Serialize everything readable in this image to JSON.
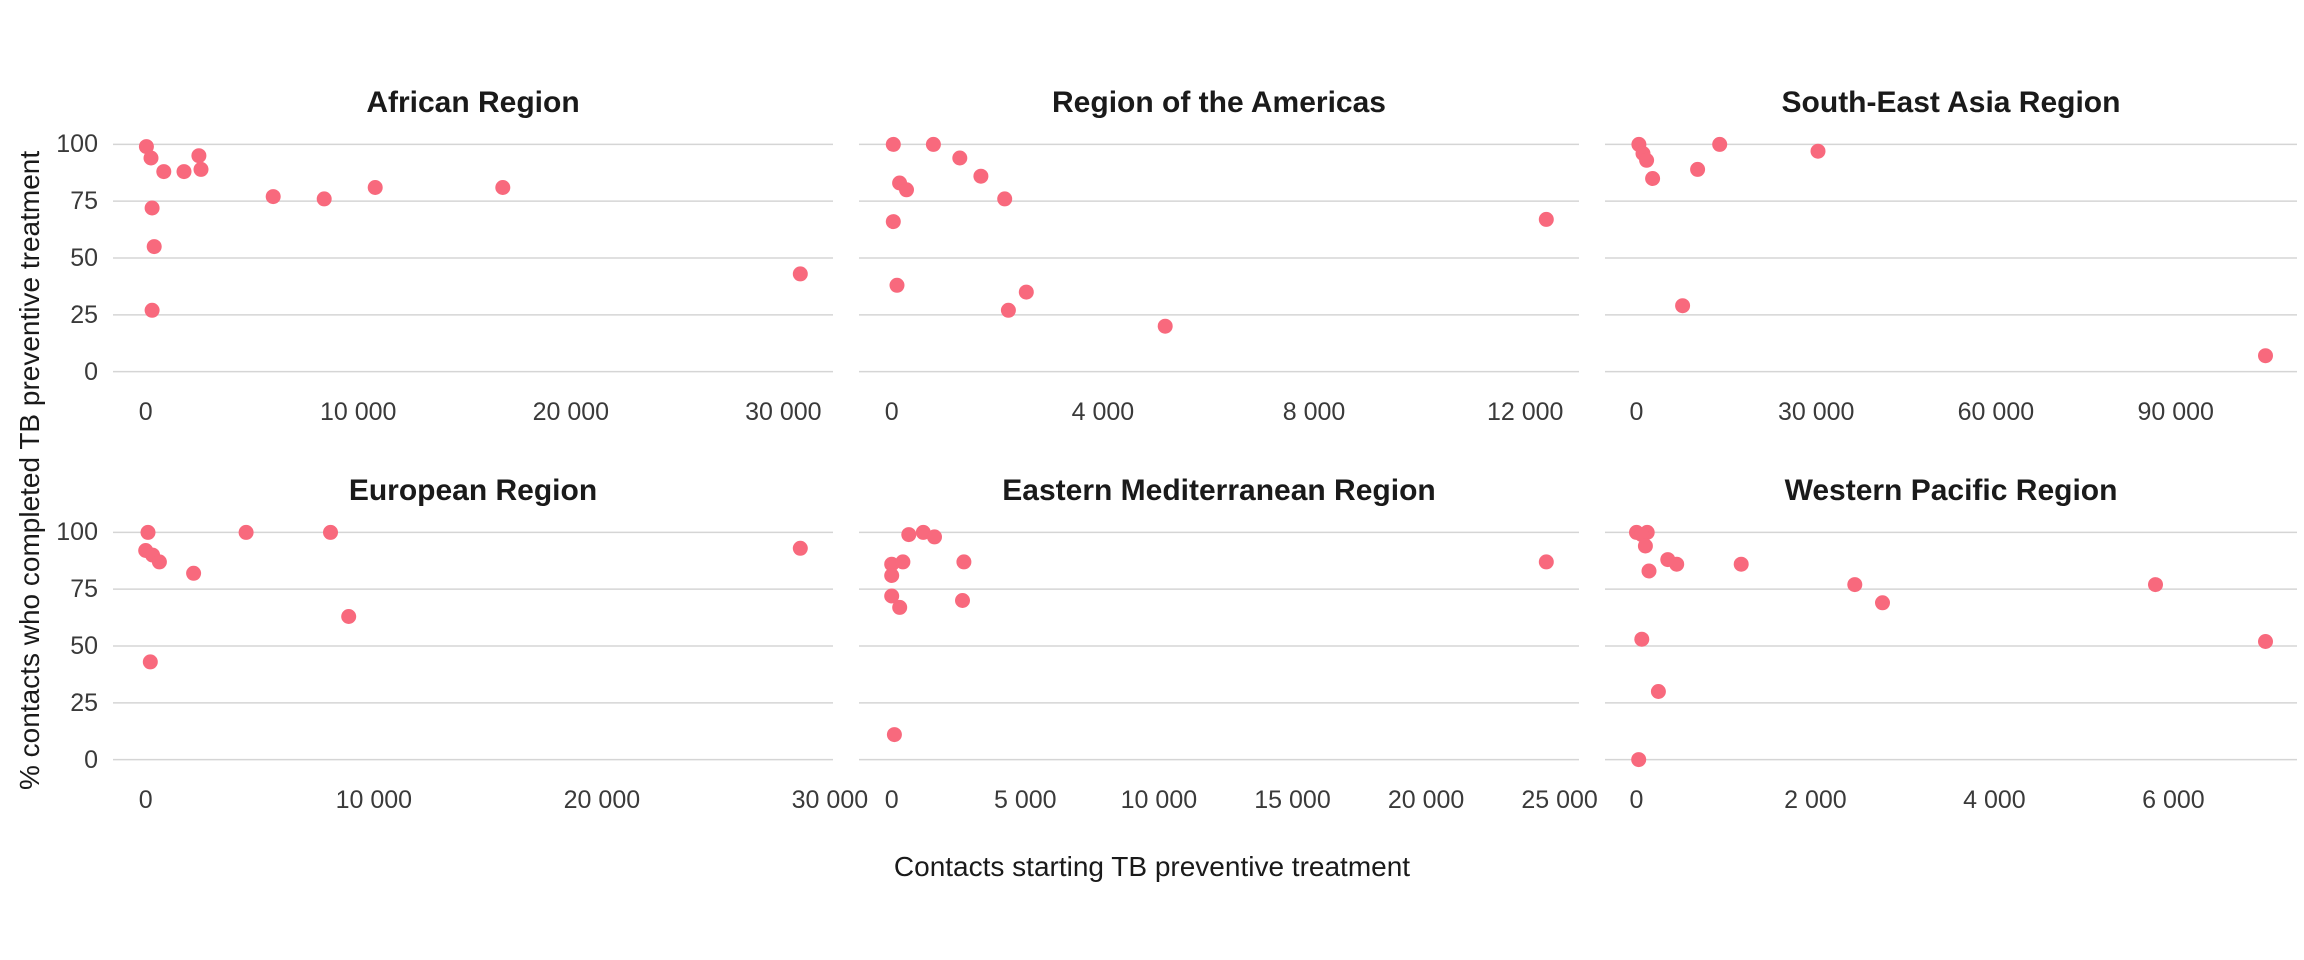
{
  "chart_data": {
    "type": "scatter",
    "title": "",
    "xlabel": "Contacts starting TB preventive treatment",
    "ylabel": "% contacts who completed TB preventive treatment",
    "ylim": [
      0,
      100
    ],
    "y_tick_values": [
      100,
      75,
      50,
      25,
      0
    ],
    "y_tick_labels": [
      "100",
      "75",
      "50",
      "25",
      "0"
    ],
    "point_color": "#f8697d",
    "grid_color": "#d5d5d5",
    "tick_text_color": "#3a3a3a",
    "layout": {
      "rows": 2,
      "cols": 3,
      "legend": "none",
      "grid": "horizontal-only",
      "background": "#ffffff"
    },
    "facets": [
      {
        "title": "African Region",
        "x_tick_values": [
          0,
          10000,
          20000,
          30000
        ],
        "x_tick_labels": [
          "0",
          "10 000",
          "20 000",
          "30 000"
        ],
        "x_max": 30800,
        "points": [
          [
            30,
            99
          ],
          [
            250,
            94
          ],
          [
            850,
            88
          ],
          [
            1800,
            88
          ],
          [
            2500,
            95
          ],
          [
            2600,
            89
          ],
          [
            300,
            72
          ],
          [
            400,
            55
          ],
          [
            300,
            27
          ],
          [
            6000,
            77
          ],
          [
            8400,
            76
          ],
          [
            10800,
            81
          ],
          [
            16800,
            81
          ],
          [
            30800,
            43
          ]
        ]
      },
      {
        "title": "Region of the Americas",
        "x_tick_values": [
          0,
          4000,
          8000,
          12000
        ],
        "x_tick_labels": [
          "0",
          "4 000",
          "8 000",
          "12 000"
        ],
        "x_max": 12400,
        "points": [
          [
            30,
            100
          ],
          [
            790,
            100
          ],
          [
            1290,
            94
          ],
          [
            1690,
            86
          ],
          [
            2140,
            76
          ],
          [
            150,
            83
          ],
          [
            280,
            80
          ],
          [
            30,
            66
          ],
          [
            100,
            38
          ],
          [
            2550,
            35
          ],
          [
            2210,
            27
          ],
          [
            5180,
            20
          ],
          [
            12400,
            67
          ]
        ]
      },
      {
        "title": "South-East Asia Region",
        "x_tick_values": [
          0,
          30000,
          60000,
          90000
        ],
        "x_tick_labels": [
          "0",
          "30 000",
          "60 000",
          "90 000"
        ],
        "x_max": 105000,
        "points": [
          [
            400,
            100
          ],
          [
            1100,
            96
          ],
          [
            1700,
            93
          ],
          [
            2700,
            85
          ],
          [
            10200,
            89
          ],
          [
            13900,
            100
          ],
          [
            30300,
            97
          ],
          [
            7700,
            29
          ],
          [
            105000,
            7
          ]
        ]
      },
      {
        "title": "European Region",
        "x_tick_values": [
          0,
          10000,
          20000,
          30000
        ],
        "x_tick_labels": [
          "0",
          "10 000",
          "20 000",
          "30 000"
        ],
        "x_max": 28700,
        "points": [
          [
            100,
            100
          ],
          [
            0,
            92
          ],
          [
            300,
            90
          ],
          [
            600,
            87
          ],
          [
            2100,
            82
          ],
          [
            4400,
            100
          ],
          [
            8100,
            100
          ],
          [
            8900,
            63
          ],
          [
            200,
            43
          ],
          [
            28700,
            93
          ]
        ]
      },
      {
        "title": "Eastern Mediterranean Region",
        "x_tick_values": [
          0,
          5000,
          10000,
          15000,
          20000,
          25000
        ],
        "x_tick_labels": [
          "0",
          "5 000",
          "10 000",
          "15 000",
          "20 000",
          "25 000"
        ],
        "x_max": 24500,
        "points": [
          [
            640,
            99
          ],
          [
            1180,
            100
          ],
          [
            1600,
            98
          ],
          [
            0,
            86
          ],
          [
            420,
            87
          ],
          [
            0,
            81
          ],
          [
            0,
            72
          ],
          [
            300,
            67
          ],
          [
            2700,
            87
          ],
          [
            2650,
            70
          ],
          [
            100,
            11
          ],
          [
            24500,
            87
          ]
        ]
      },
      {
        "title": "Western Pacific Region",
        "x_tick_values": [
          0,
          2000,
          4000,
          6000
        ],
        "x_tick_labels": [
          "0",
          "2 000",
          "4 000",
          "6 000"
        ],
        "x_max": 7030,
        "points": [
          [
            0,
            100
          ],
          [
            120,
            100
          ],
          [
            60,
            99
          ],
          [
            100,
            94
          ],
          [
            140,
            83
          ],
          [
            350,
            88
          ],
          [
            450,
            86
          ],
          [
            1170,
            86
          ],
          [
            2440,
            77
          ],
          [
            2750,
            69
          ],
          [
            60,
            53
          ],
          [
            245,
            30
          ],
          [
            25,
            0
          ],
          [
            5800,
            77
          ],
          [
            7030,
            52
          ]
        ]
      }
    ]
  }
}
